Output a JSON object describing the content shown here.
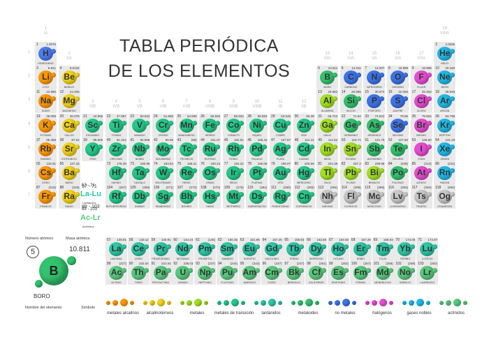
{
  "title": {
    "line1": "TABLA PERIÓDICA",
    "line2": "DE LOS ELEMENTOS"
  },
  "colors": {
    "alkali": "#ff9900",
    "alkaline": "#f2d21a",
    "metal": "#a3e024",
    "transition": "#24c98a",
    "lanthanide": "#2ec7a6",
    "actinide": "#59c97e",
    "metalloid": "#33c26e",
    "nonmetal": "#3d74e8",
    "halogen": "#e54dd1",
    "noble": "#21b9e6",
    "hydrogen": "#4c7cf0",
    "unknown": "#c7c7c7"
  },
  "groups": [
    "1",
    "2",
    "3",
    "4",
    "5",
    "6",
    "7",
    "8",
    "9",
    "10",
    "11",
    "12",
    "13",
    "14",
    "15",
    "16",
    "17",
    "18"
  ],
  "groups_roman": [
    "IA",
    "IIA",
    "IIIB",
    "IVB",
    "VB",
    "VIB",
    "VIIB",
    "VIIIB",
    "VIIIB",
    "VIIIB",
    "IB",
    "IIB",
    "IIIA",
    "IVA",
    "VA",
    "VIA",
    "VIIA",
    "VIIIA"
  ],
  "periods": [
    "1",
    "2",
    "3",
    "4",
    "5",
    "6",
    "7"
  ],
  "elements": [
    {
      "n": "1",
      "s": "H",
      "m": "1.0079",
      "name": "HIDRÓGENO",
      "cat": "hydrogen",
      "g": 1,
      "p": 1
    },
    {
      "n": "2",
      "s": "He",
      "m": "4.0026",
      "name": "HELIO",
      "cat": "noble",
      "g": 18,
      "p": 1
    },
    {
      "n": "3",
      "s": "Li",
      "m": "6.941",
      "name": "LITIO",
      "cat": "alkali",
      "g": 1,
      "p": 2
    },
    {
      "n": "4",
      "s": "Be",
      "m": "9.0122",
      "name": "BERILIO",
      "cat": "alkaline",
      "g": 2,
      "p": 2
    },
    {
      "n": "5",
      "s": "B",
      "m": "10.811",
      "name": "BORO",
      "cat": "metalloid",
      "g": 13,
      "p": 2
    },
    {
      "n": "6",
      "s": "C",
      "m": "12.011",
      "name": "CARBONO",
      "cat": "nonmetal",
      "g": 14,
      "p": 2
    },
    {
      "n": "7",
      "s": "N",
      "m": "14.007",
      "name": "NITRÓGENO",
      "cat": "nonmetal",
      "g": 15,
      "p": 2
    },
    {
      "n": "8",
      "s": "O",
      "m": "15.999",
      "name": "OXÍGENO",
      "cat": "nonmetal",
      "g": 16,
      "p": 2
    },
    {
      "n": "9",
      "s": "F",
      "m": "18.998",
      "name": "FLÚOR",
      "cat": "halogen",
      "g": 17,
      "p": 2
    },
    {
      "n": "10",
      "s": "Ne",
      "m": "20.180",
      "name": "NEÓN",
      "cat": "noble",
      "g": 18,
      "p": 2
    },
    {
      "n": "11",
      "s": "Na",
      "m": "22.990",
      "name": "SODIO",
      "cat": "alkali",
      "g": 1,
      "p": 3
    },
    {
      "n": "12",
      "s": "Mg",
      "m": "24.305",
      "name": "MAGNESIO",
      "cat": "alkaline",
      "g": 2,
      "p": 3
    },
    {
      "n": "13",
      "s": "Al",
      "m": "26.982",
      "name": "ALUMINIO",
      "cat": "metal",
      "g": 13,
      "p": 3
    },
    {
      "n": "14",
      "s": "Si",
      "m": "28.086",
      "name": "SILICIO",
      "cat": "metalloid",
      "g": 14,
      "p": 3
    },
    {
      "n": "15",
      "s": "P",
      "m": "30.974",
      "name": "FÓSFORO",
      "cat": "nonmetal",
      "g": 15,
      "p": 3
    },
    {
      "n": "16",
      "s": "S",
      "m": "32.065",
      "name": "AZUFRE",
      "cat": "nonmetal",
      "g": 16,
      "p": 3
    },
    {
      "n": "17",
      "s": "Cl",
      "m": "35.453",
      "name": "CLORO",
      "cat": "halogen",
      "g": 17,
      "p": 3
    },
    {
      "n": "18",
      "s": "Ar",
      "m": "39.948",
      "name": "ARGÓN",
      "cat": "noble",
      "g": 18,
      "p": 3
    },
    {
      "n": "19",
      "s": "K",
      "m": "39.098",
      "name": "POTASIO",
      "cat": "alkali",
      "g": 1,
      "p": 4
    },
    {
      "n": "20",
      "s": "Ca",
      "m": "40.078",
      "name": "CALCIO",
      "cat": "alkaline",
      "g": 2,
      "p": 4
    },
    {
      "n": "21",
      "s": "Sc",
      "m": "44.956",
      "name": "ESCANDIO",
      "cat": "transition",
      "g": 3,
      "p": 4
    },
    {
      "n": "22",
      "s": "Ti",
      "m": "47.867",
      "name": "TITANIO",
      "cat": "transition",
      "g": 4,
      "p": 4
    },
    {
      "n": "23",
      "s": "V",
      "m": "50.942",
      "name": "VANADIO",
      "cat": "transition",
      "g": 5,
      "p": 4
    },
    {
      "n": "24",
      "s": "Cr",
      "m": "51.996",
      "name": "CROMO",
      "cat": "transition",
      "g": 6,
      "p": 4
    },
    {
      "n": "25",
      "s": "Mn",
      "m": "54.938",
      "name": "MANGANESO",
      "cat": "transition",
      "g": 7,
      "p": 4
    },
    {
      "n": "26",
      "s": "Fe",
      "m": "55.845",
      "name": "HIERRO",
      "cat": "transition",
      "g": 8,
      "p": 4
    },
    {
      "n": "27",
      "s": "Co",
      "m": "58.933",
      "name": "COBALTO",
      "cat": "transition",
      "g": 9,
      "p": 4
    },
    {
      "n": "28",
      "s": "Ni",
      "m": "58.693",
      "name": "NÍQUEL",
      "cat": "transition",
      "g": 10,
      "p": 4
    },
    {
      "n": "29",
      "s": "Cu",
      "m": "63.546",
      "name": "COBRE",
      "cat": "transition",
      "g": 11,
      "p": 4
    },
    {
      "n": "30",
      "s": "Zn",
      "m": "65.38",
      "name": "ZINC",
      "cat": "transition",
      "g": 12,
      "p": 4
    },
    {
      "n": "31",
      "s": "Ga",
      "m": "69.723",
      "name": "GALIO",
      "cat": "metal",
      "g": 13,
      "p": 4
    },
    {
      "n": "32",
      "s": "Ge",
      "m": "72.64",
      "name": "GERMANIO",
      "cat": "metalloid",
      "g": 14,
      "p": 4
    },
    {
      "n": "33",
      "s": "As",
      "m": "74.922",
      "name": "ARSÉNICO",
      "cat": "metalloid",
      "g": 15,
      "p": 4
    },
    {
      "n": "34",
      "s": "Se",
      "m": "78.96",
      "name": "SELENIO",
      "cat": "nonmetal",
      "g": 16,
      "p": 4
    },
    {
      "n": "35",
      "s": "Br",
      "m": "79.904",
      "name": "BROMO",
      "cat": "halogen",
      "g": 17,
      "p": 4
    },
    {
      "n": "36",
      "s": "Kr",
      "m": "83.798",
      "name": "KRIPTÓN",
      "cat": "noble",
      "g": 18,
      "p": 4
    },
    {
      "n": "37",
      "s": "Rb",
      "m": "85.468",
      "name": "RUBIDIO",
      "cat": "alkali",
      "g": 1,
      "p": 5
    },
    {
      "n": "38",
      "s": "Sr",
      "m": "87.62",
      "name": "ESTRONCIO",
      "cat": "alkaline",
      "g": 2,
      "p": 5
    },
    {
      "n": "39",
      "s": "Y",
      "m": "88.906",
      "name": "ITRIO",
      "cat": "transition",
      "g": 3,
      "p": 5
    },
    {
      "n": "40",
      "s": "Zr",
      "m": "91.224",
      "name": "CIRCONIO",
      "cat": "transition",
      "g": 4,
      "p": 5
    },
    {
      "n": "41",
      "s": "Nb",
      "m": "92.906",
      "name": "NIOBIO",
      "cat": "transition",
      "g": 5,
      "p": 5
    },
    {
      "n": "42",
      "s": "Mo",
      "m": "95.96",
      "name": "MOLIBDENO",
      "cat": "transition",
      "g": 6,
      "p": 5
    },
    {
      "n": "43",
      "s": "Tc",
      "m": "(98)",
      "name": "TECNECIO",
      "cat": "transition",
      "g": 7,
      "p": 5
    },
    {
      "n": "44",
      "s": "Ru",
      "m": "101.07",
      "name": "RUTENIO",
      "cat": "transition",
      "g": 8,
      "p": 5
    },
    {
      "n": "45",
      "s": "Rh",
      "m": "102.91",
      "name": "RODIO",
      "cat": "transition",
      "g": 9,
      "p": 5
    },
    {
      "n": "46",
      "s": "Pd",
      "m": "106.42",
      "name": "PALADIO",
      "cat": "transition",
      "g": 10,
      "p": 5
    },
    {
      "n": "47",
      "s": "Ag",
      "m": "107.87",
      "name": "PLATA",
      "cat": "transition",
      "g": 11,
      "p": 5
    },
    {
      "n": "48",
      "s": "Cd",
      "m": "112.41",
      "name": "CADMIO",
      "cat": "transition",
      "g": 12,
      "p": 5
    },
    {
      "n": "49",
      "s": "In",
      "m": "114.82",
      "name": "INDIO",
      "cat": "metal",
      "g": 13,
      "p": 5
    },
    {
      "n": "50",
      "s": "Sn",
      "m": "118.71",
      "name": "ESTAÑO",
      "cat": "metal",
      "g": 14,
      "p": 5
    },
    {
      "n": "51",
      "s": "Sb",
      "m": "121.76",
      "name": "ANTIMONIO",
      "cat": "metalloid",
      "g": 15,
      "p": 5
    },
    {
      "n": "52",
      "s": "Te",
      "m": "127.60",
      "name": "TELURIO",
      "cat": "metalloid",
      "g": 16,
      "p": 5
    },
    {
      "n": "53",
      "s": "I",
      "m": "126.90",
      "name": "YODO",
      "cat": "halogen",
      "g": 17,
      "p": 5
    },
    {
      "n": "54",
      "s": "Xe",
      "m": "131.29",
      "name": "XENÓN",
      "cat": "noble",
      "g": 18,
      "p": 5
    },
    {
      "n": "55",
      "s": "Cs",
      "m": "132.91",
      "name": "CESIO",
      "cat": "alkali",
      "g": 1,
      "p": 6
    },
    {
      "n": "56",
      "s": "Ba",
      "m": "137.33",
      "name": "BARIO",
      "cat": "alkaline",
      "g": 2,
      "p": 6
    },
    {
      "n": "72",
      "s": "Hf",
      "m": "178.49",
      "name": "HAFNIO",
      "cat": "transition",
      "g": 4,
      "p": 6
    },
    {
      "n": "73",
      "s": "Ta",
      "m": "180.95",
      "name": "TÁNTALO",
      "cat": "transition",
      "g": 5,
      "p": 6
    },
    {
      "n": "74",
      "s": "W",
      "m": "183.84",
      "name": "WOLFRAMIO",
      "cat": "transition",
      "g": 6,
      "p": 6
    },
    {
      "n": "75",
      "s": "Re",
      "m": "186.21",
      "name": "RENIO",
      "cat": "transition",
      "g": 7,
      "p": 6
    },
    {
      "n": "76",
      "s": "Os",
      "m": "190.23",
      "name": "OSMIO",
      "cat": "transition",
      "g": 8,
      "p": 6
    },
    {
      "n": "77",
      "s": "Ir",
      "m": "192.22",
      "name": "IRIDIO",
      "cat": "transition",
      "g": 9,
      "p": 6
    },
    {
      "n": "78",
      "s": "Pt",
      "m": "195.08",
      "name": "PLATINO",
      "cat": "transition",
      "g": 10,
      "p": 6
    },
    {
      "n": "79",
      "s": "Au",
      "m": "196.97",
      "name": "ORO",
      "cat": "transition",
      "g": 11,
      "p": 6
    },
    {
      "n": "80",
      "s": "Hg",
      "m": "200.59",
      "name": "MERCURIO",
      "cat": "transition",
      "g": 12,
      "p": 6
    },
    {
      "n": "81",
      "s": "Tl",
      "m": "204.38",
      "name": "TALIO",
      "cat": "metal",
      "g": 13,
      "p": 6
    },
    {
      "n": "82",
      "s": "Pb",
      "m": "207.2",
      "name": "PLOMO",
      "cat": "metal",
      "g": 14,
      "p": 6
    },
    {
      "n": "83",
      "s": "Bi",
      "m": "208.98",
      "name": "BISMUTO",
      "cat": "metal",
      "g": 15,
      "p": 6
    },
    {
      "n": "84",
      "s": "Po",
      "m": "(209)",
      "name": "POLONIO",
      "cat": "metalloid",
      "g": 16,
      "p": 6
    },
    {
      "n": "85",
      "s": "At",
      "m": "(210)",
      "name": "ASTATO",
      "cat": "halogen",
      "g": 17,
      "p": 6
    },
    {
      "n": "86",
      "s": "Rn",
      "m": "(222)",
      "name": "RADÓN",
      "cat": "noble",
      "g": 18,
      "p": 6
    },
    {
      "n": "87",
      "s": "Fr",
      "m": "(223)",
      "name": "FRANCIO",
      "cat": "alkali",
      "g": 1,
      "p": 7
    },
    {
      "n": "88",
      "s": "Ra",
      "m": "(226)",
      "name": "RADIO",
      "cat": "alkaline",
      "g": 2,
      "p": 7
    },
    {
      "n": "104",
      "s": "Rf",
      "m": "(267)",
      "name": "RUTHERFORDIO",
      "cat": "transition",
      "g": 4,
      "p": 7
    },
    {
      "n": "105",
      "s": "Db",
      "m": "(268)",
      "name": "DUBNIO",
      "cat": "transition",
      "g": 5,
      "p": 7
    },
    {
      "n": "106",
      "s": "Sg",
      "m": "(271)",
      "name": "SEABORGIO",
      "cat": "transition",
      "g": 6,
      "p": 7
    },
    {
      "n": "107",
      "s": "Bh",
      "m": "(272)",
      "name": "BOHRIO",
      "cat": "transition",
      "g": 7,
      "p": 7
    },
    {
      "n": "108",
      "s": "Hs",
      "m": "(270)",
      "name": "HASIO",
      "cat": "transition",
      "g": 8,
      "p": 7
    },
    {
      "n": "109",
      "s": "Mt",
      "m": "(276)",
      "name": "MEITNERIO",
      "cat": "transition",
      "g": 9,
      "p": 7
    },
    {
      "n": "110",
      "s": "Ds",
      "m": "(281)",
      "name": "DARMSTADTIO",
      "cat": "transition",
      "g": 10,
      "p": 7
    },
    {
      "n": "111",
      "s": "Rg",
      "m": "(280)",
      "name": "ROENTGENIO",
      "cat": "transition",
      "g": 11,
      "p": 7
    },
    {
      "n": "112",
      "s": "Cn",
      "m": "(285)",
      "name": "COPERNICIO",
      "cat": "transition",
      "g": 12,
      "p": 7
    },
    {
      "n": "113",
      "s": "Nh",
      "m": "(284)",
      "name": "NIHONIO",
      "cat": "unknown",
      "g": 13,
      "p": 7
    },
    {
      "n": "114",
      "s": "Fl",
      "m": "(289)",
      "name": "FLEROVIO",
      "cat": "unknown",
      "g": 14,
      "p": 7
    },
    {
      "n": "115",
      "s": "Mc",
      "m": "(288)",
      "name": "MOSCOVIO",
      "cat": "unknown",
      "g": 15,
      "p": 7
    },
    {
      "n": "116",
      "s": "Lv",
      "m": "(293)",
      "name": "LIVERMORIO",
      "cat": "unknown",
      "g": 16,
      "p": 7
    },
    {
      "n": "117",
      "s": "Ts",
      "m": "(294)",
      "name": "TENESO",
      "cat": "unknown",
      "g": 17,
      "p": 7
    },
    {
      "n": "118",
      "s": "Og",
      "m": "(294)",
      "name": "OGANESÓN",
      "cat": "unknown",
      "g": 18,
      "p": 7
    }
  ],
  "f_block": [
    {
      "n": "57",
      "s": "La",
      "m": "138.91",
      "name": "LANTANO",
      "cat": "lanthanide",
      "r": 0,
      "c": 0
    },
    {
      "n": "58",
      "s": "Ce",
      "m": "140.12",
      "name": "CERIO",
      "cat": "lanthanide",
      "r": 0,
      "c": 1
    },
    {
      "n": "59",
      "s": "Pr",
      "m": "140.91",
      "name": "PRASEODIMIO",
      "cat": "lanthanide",
      "r": 0,
      "c": 2
    },
    {
      "n": "60",
      "s": "Nd",
      "m": "144.24",
      "name": "NEODIMIO",
      "cat": "lanthanide",
      "r": 0,
      "c": 3
    },
    {
      "n": "61",
      "s": "Pm",
      "m": "(145)",
      "name": "PROMETIO",
      "cat": "lanthanide",
      "r": 0,
      "c": 4
    },
    {
      "n": "62",
      "s": "Sm",
      "m": "150.36",
      "name": "SAMARIO",
      "cat": "lanthanide",
      "r": 0,
      "c": 5
    },
    {
      "n": "63",
      "s": "Eu",
      "m": "151.96",
      "name": "EUROPIO",
      "cat": "lanthanide",
      "r": 0,
      "c": 6
    },
    {
      "n": "64",
      "s": "Gd",
      "m": "157.25",
      "name": "GADOLINIO",
      "cat": "lanthanide",
      "r": 0,
      "c": 7
    },
    {
      "n": "65",
      "s": "Tb",
      "m": "158.93",
      "name": "TERBIO",
      "cat": "lanthanide",
      "r": 0,
      "c": 8
    },
    {
      "n": "66",
      "s": "Dy",
      "m": "162.50",
      "name": "DISPROSIO",
      "cat": "lanthanide",
      "r": 0,
      "c": 9
    },
    {
      "n": "67",
      "s": "Ho",
      "m": "164.93",
      "name": "HOLMIO",
      "cat": "lanthanide",
      "r": 0,
      "c": 10
    },
    {
      "n": "68",
      "s": "Er",
      "m": "167.26",
      "name": "ERBIO",
      "cat": "lanthanide",
      "r": 0,
      "c": 11
    },
    {
      "n": "69",
      "s": "Tm",
      "m": "168.93",
      "name": "TULIO",
      "cat": "lanthanide",
      "r": 0,
      "c": 12
    },
    {
      "n": "70",
      "s": "Yb",
      "m": "173.05",
      "name": "ITERBIO",
      "cat": "lanthanide",
      "r": 0,
      "c": 13
    },
    {
      "n": "71",
      "s": "Lu",
      "m": "174.97",
      "name": "LUTECIO",
      "cat": "lanthanide",
      "r": 0,
      "c": 14
    },
    {
      "n": "89",
      "s": "Ac",
      "m": "(227)",
      "name": "ACTINIO",
      "cat": "actinide",
      "r": 1,
      "c": 0
    },
    {
      "n": "90",
      "s": "Th",
      "m": "232.04",
      "name": "TORIO",
      "cat": "actinide",
      "r": 1,
      "c": 1
    },
    {
      "n": "91",
      "s": "Pa",
      "m": "231.04",
      "name": "PROTACTINIO",
      "cat": "actinide",
      "r": 1,
      "c": 2
    },
    {
      "n": "92",
      "s": "U",
      "m": "238.03",
      "name": "URANIO",
      "cat": "actinide",
      "r": 1,
      "c": 3
    },
    {
      "n": "93",
      "s": "Np",
      "m": "(237)",
      "name": "NEPTUNIO",
      "cat": "actinide",
      "r": 1,
      "c": 4
    },
    {
      "n": "94",
      "s": "Pu",
      "m": "(244)",
      "name": "PLUTONIO",
      "cat": "actinide",
      "r": 1,
      "c": 5
    },
    {
      "n": "95",
      "s": "Am",
      "m": "(243)",
      "name": "AMERICIO",
      "cat": "actinide",
      "r": 1,
      "c": 6
    },
    {
      "n": "96",
      "s": "Cm",
      "m": "(247)",
      "name": "CURIO",
      "cat": "actinide",
      "r": 1,
      "c": 7
    },
    {
      "n": "97",
      "s": "Bk",
      "m": "(247)",
      "name": "BERKELIO",
      "cat": "actinide",
      "r": 1,
      "c": 8
    },
    {
      "n": "98",
      "s": "Cf",
      "m": "(251)",
      "name": "CALIFORNIO",
      "cat": "actinide",
      "r": 1,
      "c": 9
    },
    {
      "n": "99",
      "s": "Es",
      "m": "(252)",
      "name": "EINSTENIO",
      "cat": "actinide",
      "r": 1,
      "c": 10
    },
    {
      "n": "100",
      "s": "Fm",
      "m": "(257)",
      "name": "FERMIO",
      "cat": "actinide",
      "r": 1,
      "c": 11
    },
    {
      "n": "101",
      "s": "Md",
      "m": "(258)",
      "name": "MENDELEVIO",
      "cat": "actinide",
      "r": 1,
      "c": 12
    },
    {
      "n": "102",
      "s": "No",
      "m": "(259)",
      "name": "NOBELIO",
      "cat": "actinide",
      "r": 1,
      "c": 13
    },
    {
      "n": "103",
      "s": "Lr",
      "m": "(262)",
      "name": "LAURENCIO",
      "cat": "actinide",
      "r": 1,
      "c": 14
    }
  ],
  "ranges": {
    "lan_num": "57 - 71",
    "lan_sym": "La-Lu",
    "lan_name": "Lantánidos",
    "act_num": "89 - 103",
    "act_sym": "Ac-Lr",
    "act_name": "Actínidos"
  },
  "key": {
    "atomic_number_label": "Número atómico",
    "atomic_mass_label": "Masa atómica",
    "number": "5",
    "mass": "10.811",
    "symbol": "B",
    "name": "BORO",
    "element_name_label": "Nombre del elemento",
    "symbol_label": "Símbolo"
  },
  "legend": [
    {
      "label": "metales alcalinos",
      "cat": "alkali"
    },
    {
      "label": "alcalinotérreos",
      "cat": "alkaline"
    },
    {
      "label": "metales",
      "cat": "metal"
    },
    {
      "label": "metales de transición",
      "cat": "transition"
    },
    {
      "label": "lantánidos",
      "cat": "lanthanide"
    },
    {
      "label": "metaloides",
      "cat": "metalloid"
    },
    {
      "label": "no metales",
      "cat": "nonmetal"
    },
    {
      "label": "halógenos",
      "cat": "halogen"
    },
    {
      "label": "gases nobles",
      "cat": "noble"
    },
    {
      "label": "actínidos",
      "cat": "actinide"
    }
  ]
}
